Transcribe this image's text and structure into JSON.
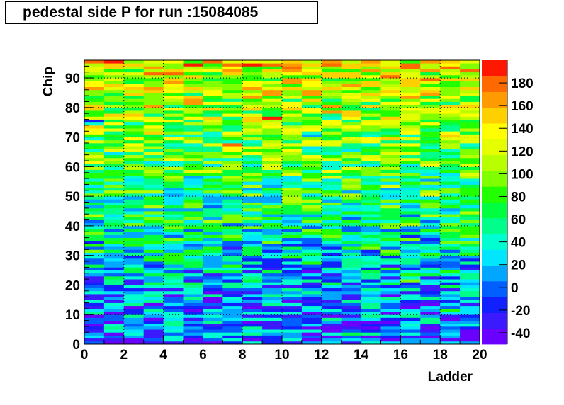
{
  "chart_data": {
    "type": "heatmap",
    "title": "pedestal side P for run :15084085",
    "xlabel": "Ladder",
    "ylabel": "Chip",
    "xlim": [
      0,
      20
    ],
    "ylim": [
      0,
      96
    ],
    "x_ticks": [
      "0",
      "2",
      "4",
      "6",
      "8",
      "10",
      "12",
      "14",
      "16",
      "18",
      "20"
    ],
    "y_ticks": [
      "0",
      "10",
      "20",
      "30",
      "40",
      "50",
      "60",
      "70",
      "80",
      "90"
    ],
    "zlim": [
      -50,
      200
    ],
    "z_ticks": [
      "-40",
      "-20",
      "0",
      "20",
      "40",
      "60",
      "80",
      "100",
      "120",
      "140",
      "160",
      "180"
    ],
    "grid": true,
    "colorbar": "right",
    "ladders": 20,
    "chips": 96,
    "palette": [
      "#6a00ff",
      "#3c1aff",
      "#1020ff",
      "#0060ff",
      "#00a6ff",
      "#00e6ff",
      "#00ffd0",
      "#00ff8a",
      "#00ff40",
      "#22ff00",
      "#80ff00",
      "#b8ff00",
      "#e6ff00",
      "#ffff00",
      "#ffd000",
      "#ff9a00",
      "#ff6a00",
      "#ff1800"
    ]
  }
}
